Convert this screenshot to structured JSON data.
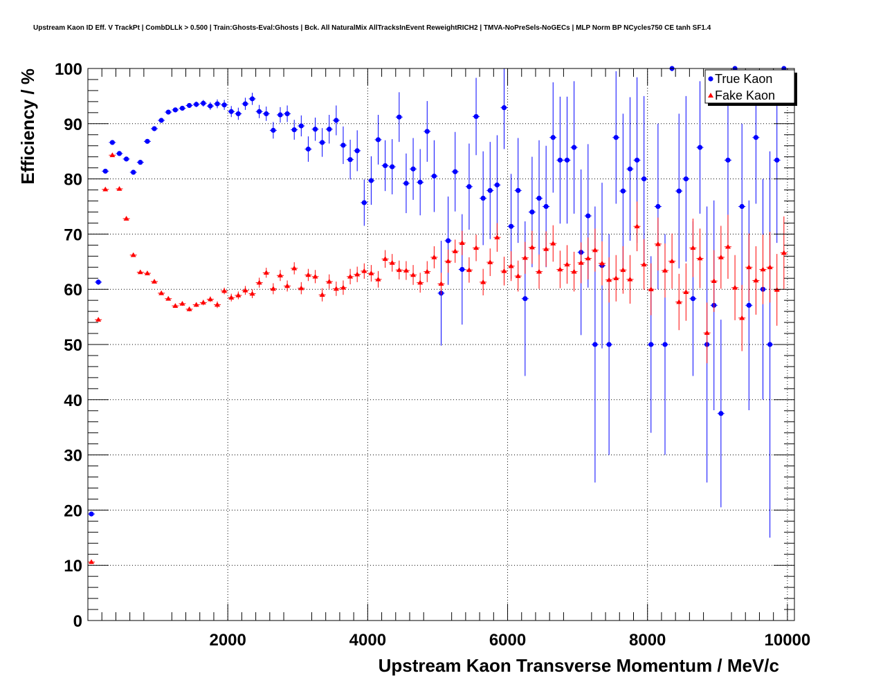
{
  "chart_data": {
    "type": "scatter",
    "title": "Upstream Kaon ID Eff. V TrackPt | CombDLLk > 0.500 | Train:Ghosts-Eval:Ghosts | Bck. All NaturalMix AllTracksInEvent ReweightRICH2 | TMVA-NoPreSels-NoGECs | MLP Norm BP NCycles750 CE tanh SF1.4",
    "xlabel": "Upstream Kaon Transverse Momentum / MeV/c",
    "ylabel": "Efficiency / %",
    "xlim": [
      0,
      10100
    ],
    "ylim": [
      0,
      100
    ],
    "x_ticks": [
      {
        "value": 2000,
        "label": "2000"
      },
      {
        "value": 4000,
        "label": "4000"
      },
      {
        "value": 6000,
        "label": "6000"
      },
      {
        "value": 8000,
        "label": "8000"
      },
      {
        "value": 10000,
        "label": "10000"
      }
    ],
    "y_ticks": [
      {
        "value": 0,
        "label": "0"
      },
      {
        "value": 10,
        "label": "10"
      },
      {
        "value": 20,
        "label": "20"
      },
      {
        "value": 30,
        "label": "30"
      },
      {
        "value": 40,
        "label": "40"
      },
      {
        "value": 50,
        "label": "50"
      },
      {
        "value": 60,
        "label": "60"
      },
      {
        "value": 70,
        "label": "70"
      },
      {
        "value": 80,
        "label": "80"
      },
      {
        "value": 90,
        "label": "90"
      },
      {
        "value": 100,
        "label": "100"
      }
    ],
    "grid": true,
    "legend_position": "top-right",
    "series": [
      {
        "name": "True Kaon",
        "color": "#0000ff",
        "marker": "circle",
        "points": [
          [
            50,
            19.3,
            0.3
          ],
          [
            150,
            61.3,
            0.5
          ],
          [
            250,
            81.4,
            0.4
          ],
          [
            350,
            86.6,
            0.4
          ],
          [
            450,
            84.6,
            0.4
          ],
          [
            550,
            83.6,
            0.4
          ],
          [
            650,
            81.2,
            0.4
          ],
          [
            750,
            83.0,
            0.4
          ],
          [
            850,
            86.8,
            0.4
          ],
          [
            950,
            89.1,
            0.4
          ],
          [
            1050,
            90.6,
            0.4
          ],
          [
            1150,
            92.1,
            0.4
          ],
          [
            1250,
            92.5,
            0.4
          ],
          [
            1350,
            92.8,
            0.4
          ],
          [
            1450,
            93.3,
            0.4
          ],
          [
            1550,
            93.5,
            0.5
          ],
          [
            1650,
            93.7,
            0.6
          ],
          [
            1750,
            93.2,
            0.7
          ],
          [
            1850,
            93.6,
            0.8
          ],
          [
            1950,
            93.4,
            0.9
          ],
          [
            2050,
            92.2,
            1.0
          ],
          [
            2150,
            91.8,
            1.1
          ],
          [
            2250,
            93.6,
            1.1
          ],
          [
            2350,
            94.5,
            1.1
          ],
          [
            2450,
            92.2,
            1.2
          ],
          [
            2550,
            91.8,
            1.3
          ],
          [
            2650,
            88.8,
            1.5
          ],
          [
            2750,
            91.6,
            1.4
          ],
          [
            2850,
            91.8,
            1.5
          ],
          [
            2950,
            88.9,
            1.8
          ],
          [
            3050,
            89.6,
            1.9
          ],
          [
            3150,
            85.4,
            2.3
          ],
          [
            3250,
            89.0,
            2.1
          ],
          [
            3350,
            86.6,
            2.6
          ],
          [
            3450,
            89.0,
            2.6
          ],
          [
            3550,
            90.6,
            2.7
          ],
          [
            3650,
            86.1,
            3.4
          ],
          [
            3750,
            83.5,
            3.6
          ],
          [
            3850,
            85.1,
            3.7
          ],
          [
            3950,
            75.7,
            4.2
          ],
          [
            4050,
            79.7,
            4.4
          ],
          [
            4150,
            87.1,
            4.5
          ],
          [
            4250,
            82.4,
            4.6
          ],
          [
            4350,
            82.2,
            5.0
          ],
          [
            4450,
            91.2,
            4.5
          ],
          [
            4550,
            79.2,
            5.4
          ],
          [
            4650,
            81.8,
            5.6
          ],
          [
            4750,
            79.4,
            6.0
          ],
          [
            4850,
            88.6,
            5.5
          ],
          [
            4950,
            80.5,
            6.5
          ],
          [
            5050,
            59.3,
            9.5
          ],
          [
            5150,
            68.8,
            8.0
          ],
          [
            5250,
            81.3,
            7.2
          ],
          [
            5350,
            63.6,
            10.0
          ],
          [
            5450,
            78.6,
            7.8
          ],
          [
            5550,
            91.3,
            7.0
          ],
          [
            5650,
            76.5,
            8.5
          ],
          [
            5750,
            77.9,
            8.8
          ],
          [
            5850,
            78.9,
            9.0
          ],
          [
            5950,
            92.9,
            7.5
          ],
          [
            6050,
            71.4,
            9.5
          ],
          [
            6150,
            77.9,
            9.5
          ],
          [
            6250,
            58.3,
            14.0
          ],
          [
            6350,
            74.0,
            10.0
          ],
          [
            6450,
            76.5,
            10.5
          ],
          [
            6550,
            75.0,
            11.0
          ],
          [
            6650,
            87.5,
            10.0
          ],
          [
            6750,
            83.4,
            11.5
          ],
          [
            6850,
            83.4,
            11.5
          ],
          [
            6950,
            85.7,
            12.0
          ],
          [
            7050,
            66.7,
            15.0
          ],
          [
            7150,
            73.3,
            13.0
          ],
          [
            7250,
            50.0,
            25.0
          ],
          [
            7350,
            64.3,
            15.0
          ],
          [
            7450,
            50.0,
            20.0
          ],
          [
            7550,
            87.5,
            12.0
          ],
          [
            7650,
            77.8,
            14.0
          ],
          [
            7750,
            81.8,
            13.0
          ],
          [
            7850,
            83.4,
            15.0
          ],
          [
            7950,
            80.0,
            15.0
          ],
          [
            8050,
            50.0,
            16.0
          ],
          [
            8150,
            75.0,
            15.0
          ],
          [
            8250,
            50.0,
            20.0
          ],
          [
            8350,
            100.0,
            0.5
          ],
          [
            8450,
            77.8,
            14.0
          ],
          [
            8550,
            80.0,
            15.0
          ],
          [
            8650,
            58.3,
            14.0
          ],
          [
            8750,
            85.7,
            12.0
          ],
          [
            8850,
            50.0,
            25.0
          ],
          [
            8950,
            57.1,
            19.0
          ],
          [
            9050,
            37.5,
            17.0
          ],
          [
            9150,
            83.4,
            15.0
          ],
          [
            9250,
            100.0,
            0.5
          ],
          [
            9350,
            75.0,
            15.0
          ],
          [
            9450,
            57.1,
            19.0
          ],
          [
            9550,
            87.5,
            12.0
          ],
          [
            9650,
            60.0,
            20.0
          ],
          [
            9750,
            50.0,
            35.0
          ],
          [
            9850,
            83.4,
            15.0
          ],
          [
            9950,
            100.0,
            0.5
          ]
        ]
      },
      {
        "name": "Fake Kaon",
        "color": "#ff0000",
        "marker": "triangle",
        "points": [
          [
            50,
            10.6,
            0.2
          ],
          [
            150,
            54.5,
            0.2
          ],
          [
            250,
            78.1,
            0.2
          ],
          [
            350,
            84.3,
            0.2
          ],
          [
            450,
            78.2,
            0.2
          ],
          [
            550,
            72.8,
            0.2
          ],
          [
            650,
            66.2,
            0.2
          ],
          [
            750,
            63.1,
            0.2
          ],
          [
            850,
            62.9,
            0.2
          ],
          [
            950,
            61.4,
            0.3
          ],
          [
            1050,
            59.3,
            0.3
          ],
          [
            1150,
            58.3,
            0.3
          ],
          [
            1250,
            57.0,
            0.3
          ],
          [
            1350,
            57.4,
            0.4
          ],
          [
            1450,
            56.4,
            0.4
          ],
          [
            1550,
            57.2,
            0.4
          ],
          [
            1650,
            57.6,
            0.5
          ],
          [
            1750,
            58.2,
            0.5
          ],
          [
            1850,
            57.2,
            0.6
          ],
          [
            1950,
            59.7,
            0.6
          ],
          [
            2050,
            58.5,
            0.7
          ],
          [
            2150,
            58.9,
            0.7
          ],
          [
            2250,
            59.8,
            0.8
          ],
          [
            2350,
            59.2,
            0.8
          ],
          [
            2450,
            61.2,
            0.9
          ],
          [
            2550,
            63.0,
            0.9
          ],
          [
            2650,
            60.1,
            1.0
          ],
          [
            2750,
            62.5,
            1.0
          ],
          [
            2850,
            60.6,
            1.0
          ],
          [
            2950,
            63.8,
            1.1
          ],
          [
            3050,
            60.2,
            1.1
          ],
          [
            3150,
            62.6,
            1.1
          ],
          [
            3250,
            62.3,
            1.2
          ],
          [
            3350,
            59.0,
            1.2
          ],
          [
            3450,
            61.4,
            1.3
          ],
          [
            3550,
            60.1,
            1.3
          ],
          [
            3650,
            60.3,
            1.3
          ],
          [
            3750,
            62.3,
            1.4
          ],
          [
            3850,
            62.7,
            1.4
          ],
          [
            3950,
            63.3,
            1.4
          ],
          [
            4050,
            62.9,
            1.5
          ],
          [
            4150,
            61.8,
            1.5
          ],
          [
            4250,
            65.5,
            1.6
          ],
          [
            4350,
            64.8,
            1.6
          ],
          [
            4450,
            63.5,
            1.7
          ],
          [
            4550,
            63.4,
            1.7
          ],
          [
            4650,
            62.6,
            1.8
          ],
          [
            4750,
            61.2,
            1.8
          ],
          [
            4850,
            63.2,
            1.9
          ],
          [
            4950,
            65.8,
            2.0
          ],
          [
            5050,
            61.0,
            2.0
          ],
          [
            5150,
            65.1,
            2.1
          ],
          [
            5250,
            66.9,
            2.1
          ],
          [
            5350,
            68.4,
            2.2
          ],
          [
            5450,
            63.5,
            2.3
          ],
          [
            5550,
            67.5,
            2.4
          ],
          [
            5650,
            61.3,
            2.4
          ],
          [
            5750,
            64.9,
            2.5
          ],
          [
            5850,
            69.4,
            2.6
          ],
          [
            5950,
            63.3,
            2.6
          ],
          [
            6050,
            64.2,
            2.7
          ],
          [
            6150,
            62.4,
            2.8
          ],
          [
            6250,
            65.7,
            2.9
          ],
          [
            6350,
            67.6,
            3.0
          ],
          [
            6450,
            63.2,
            3.1
          ],
          [
            6550,
            67.3,
            3.2
          ],
          [
            6650,
            68.3,
            3.3
          ],
          [
            6750,
            63.6,
            3.4
          ],
          [
            6850,
            64.5,
            3.5
          ],
          [
            6950,
            63.2,
            3.6
          ],
          [
            7050,
            64.8,
            3.7
          ],
          [
            7150,
            65.6,
            3.8
          ],
          [
            7250,
            67.1,
            3.9
          ],
          [
            7350,
            64.7,
            4.0
          ],
          [
            7450,
            61.7,
            4.1
          ],
          [
            7550,
            62.0,
            4.2
          ],
          [
            7650,
            63.5,
            4.3
          ],
          [
            7750,
            61.8,
            4.4
          ],
          [
            7850,
            71.4,
            4.5
          ],
          [
            7950,
            64.5,
            4.6
          ],
          [
            8050,
            60.0,
            4.7
          ],
          [
            8150,
            68.2,
            4.8
          ],
          [
            8250,
            63.4,
            4.9
          ],
          [
            8350,
            65.1,
            5.0
          ],
          [
            8450,
            57.7,
            5.1
          ],
          [
            8550,
            59.5,
            5.2
          ],
          [
            8650,
            67.5,
            5.3
          ],
          [
            8750,
            65.6,
            5.4
          ],
          [
            8850,
            52.1,
            5.5
          ],
          [
            8950,
            61.5,
            5.6
          ],
          [
            9050,
            65.8,
            5.7
          ],
          [
            9150,
            67.7,
            5.8
          ],
          [
            9250,
            60.3,
            5.9
          ],
          [
            9350,
            54.8,
            6.0
          ],
          [
            9450,
            64.0,
            6.1
          ],
          [
            9550,
            61.6,
            6.2
          ],
          [
            9650,
            63.6,
            6.3
          ],
          [
            9750,
            64.0,
            6.4
          ],
          [
            9850,
            59.9,
            6.5
          ],
          [
            9950,
            66.6,
            6.6
          ]
        ]
      }
    ]
  }
}
